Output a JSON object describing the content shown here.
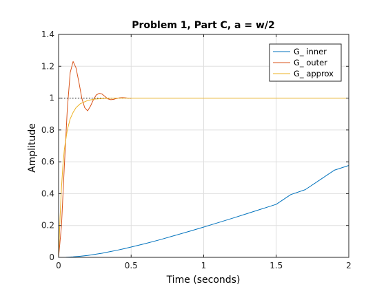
{
  "chart_data": {
    "type": "line",
    "title": "Problem 1, Part C, a = w/2",
    "xlabel": "Time (seconds)",
    "ylabel": "Amplitude",
    "xlim": [
      0,
      2
    ],
    "ylim": [
      0,
      1.4
    ],
    "x_ticks": [
      0,
      0.5,
      1,
      1.5,
      2
    ],
    "x_tick_labels": [
      "0",
      "0.5",
      "1",
      "1.5",
      "2"
    ],
    "y_ticks": [
      0,
      0.2,
      0.4,
      0.6,
      0.8,
      1,
      1.2,
      1.4
    ],
    "y_tick_labels": [
      "0",
      "0.2",
      "0.4",
      "0.6",
      "0.8",
      "1",
      "1.2",
      "1.4"
    ],
    "grid": true,
    "legend_position": "top-right",
    "reference_line": {
      "y": 1,
      "x_range": [
        0,
        0.5
      ],
      "style": "dotted",
      "color": "#000000"
    },
    "series": [
      {
        "name": "G_ inner",
        "color": "#0072BD",
        "x": [
          0,
          0.05,
          0.1,
          0.15,
          0.2,
          0.25,
          0.3,
          0.35,
          0.4,
          0.45,
          0.5,
          0.6,
          0.7,
          0.8,
          0.9,
          1.0,
          1.1,
          1.2,
          1.3,
          1.4,
          1.5,
          1.6,
          1.7,
          1.8,
          1.9,
          2.0
        ],
        "y": [
          0,
          0.0004,
          0.003,
          0.007,
          0.012,
          0.019,
          0.026,
          0.035,
          0.044,
          0.054,
          0.065,
          0.087,
          0.111,
          0.137,
          0.163,
          0.19,
          0.218,
          0.246,
          0.275,
          0.304,
          0.333,
          0.394,
          0.425,
          0.486,
          0.547,
          0.577
        ]
      },
      {
        "name": "G_ outer",
        "color": "#D95319",
        "x": [
          0,
          0.02,
          0.04,
          0.06,
          0.08,
          0.1,
          0.12,
          0.14,
          0.16,
          0.18,
          0.2,
          0.22,
          0.24,
          0.26,
          0.28,
          0.3,
          0.32,
          0.34,
          0.36,
          0.38,
          0.4,
          0.42,
          0.44,
          0.46,
          0.48,
          0.5
        ],
        "y": [
          0,
          0.2,
          0.58,
          0.93,
          1.16,
          1.23,
          1.19,
          1.1,
          1.0,
          0.94,
          0.92,
          0.95,
          0.99,
          1.02,
          1.03,
          1.025,
          1.01,
          0.995,
          0.99,
          0.992,
          0.998,
          1.002,
          1.003,
          1.002,
          1.0,
          1.0
        ]
      },
      {
        "name": "G_ approx",
        "color": "#EDB120",
        "x": [
          0,
          0.01,
          0.02,
          0.03,
          0.04,
          0.06,
          0.08,
          0.1,
          0.12,
          0.15,
          0.2,
          0.25,
          0.3,
          0.35,
          0.4,
          0.5,
          0.6,
          0.8,
          1.0,
          1.5,
          2.0
        ],
        "y": [
          0,
          0.25,
          0.44,
          0.58,
          0.68,
          0.8,
          0.87,
          0.91,
          0.94,
          0.965,
          0.985,
          0.994,
          0.997,
          0.999,
          1.0,
          1.0,
          1.0,
          1.0,
          1.0,
          1.0,
          1.0
        ]
      }
    ]
  }
}
